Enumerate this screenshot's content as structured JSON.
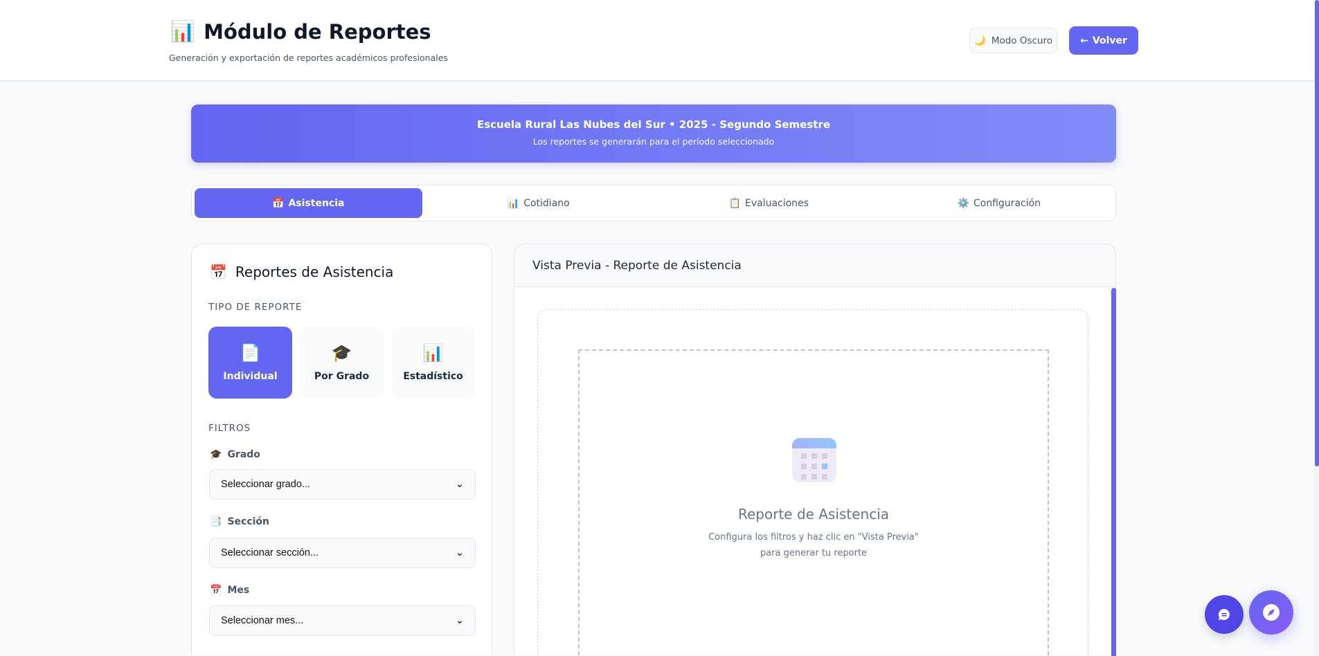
{
  "header": {
    "icon": "bar-chart-icon",
    "title": "Módulo de Reportes",
    "subtitle": "Generación y exportación de reportes académicos profesionales",
    "dark_mode_label": "Modo Oscuro",
    "back_label": "Volver",
    "back_arrow": "←"
  },
  "banner": {
    "title": "Escuela Rural Las Nubes del Sur • 2025 - Segundo Semestre",
    "subtitle": "Los reportes se generarán para el período seleccionado"
  },
  "tabs": [
    {
      "label": "Asistencia",
      "active": true
    },
    {
      "label": "Cotidiano"
    },
    {
      "label": "Evaluaciones"
    },
    {
      "label": "Configuración"
    }
  ],
  "left": {
    "title": "Reportes de Asistencia",
    "type_heading": "TIPO DE REPORTE",
    "types": [
      {
        "label": "Individual",
        "icon": "📄",
        "active": true
      },
      {
        "label": "Por Grado",
        "icon": "🎓"
      },
      {
        "label": "Estadístico",
        "icon": "📊"
      }
    ],
    "filters_heading": "FILTROS",
    "filters": [
      {
        "label": "Grado",
        "icon": "🎓",
        "value": "Seleccionar grado..."
      },
      {
        "label": "Sección",
        "icon": "📑",
        "value": "Seleccionar sección..."
      },
      {
        "label": "Mes",
        "icon": "📅",
        "value": "Seleccionar mes..."
      }
    ]
  },
  "preview": {
    "title": "Vista Previa - Reporte de Asistencia",
    "empty_title": "Reporte de Asistencia",
    "empty_line1": "Configura los filtros y haz clic en \"Vista Previa\"",
    "empty_line2": "para generar tu reporte"
  },
  "colors": {
    "accent": "#6366f1",
    "chat_fab": "#4f46e5"
  }
}
